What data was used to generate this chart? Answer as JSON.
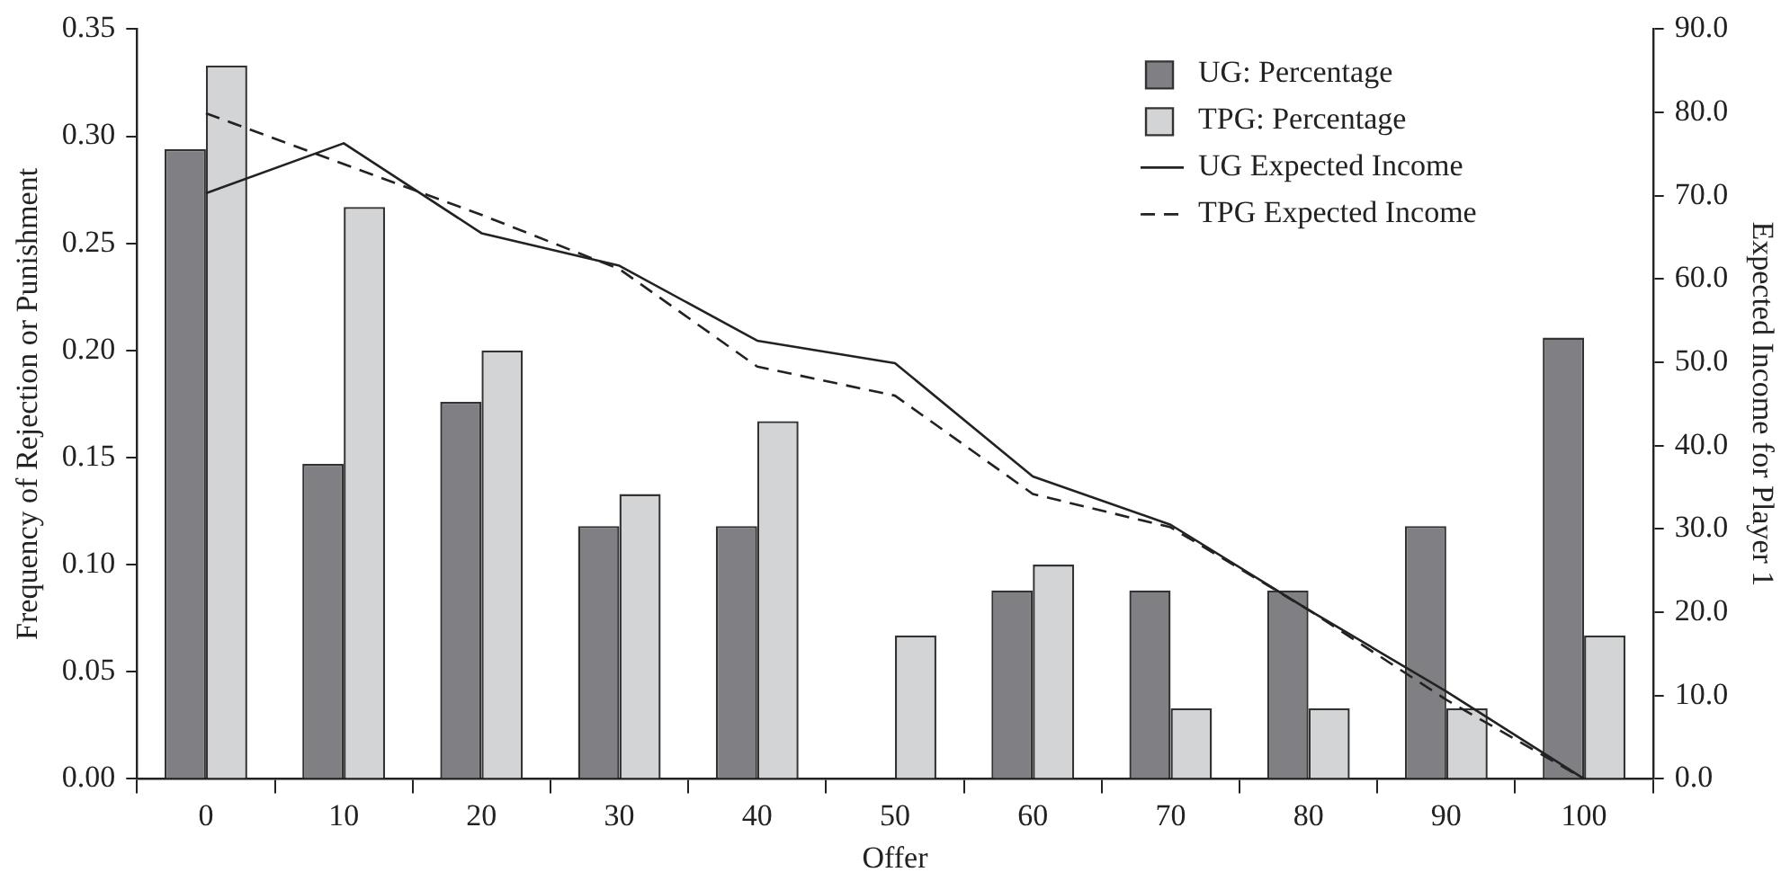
{
  "chart_data": {
    "type": "bar",
    "xlabel": "Offer",
    "ylabel": "Frequency of Rejection or Punishment",
    "y2label": "Expected Income for Player 1",
    "categories": [
      "0",
      "10",
      "20",
      "30",
      "40",
      "50",
      "60",
      "70",
      "80",
      "90",
      "100"
    ],
    "series": [
      {
        "name": "UG: Percentage",
        "color": "#808084",
        "values": [
          0.294,
          0.147,
          0.176,
          0.118,
          0.118,
          0,
          0.088,
          0.088,
          0.088,
          0.118,
          0.206
        ]
      },
      {
        "name": "TPG: Percentage",
        "color": "#d3d4d6",
        "values": [
          0.333,
          0.267,
          0.2,
          0.133,
          0.167,
          0.067,
          0.1,
          0.033,
          0.033,
          0.033,
          0.067
        ]
      },
      {
        "name": "UG Expected Income",
        "type": "line",
        "axis": "y2",
        "color": "#222222",
        "line_style": "solid",
        "values": [
          70.3,
          76.3,
          65.5,
          61.6,
          52.6,
          49.9,
          36.3,
          30.5,
          20.3,
          10.5,
          0
        ]
      },
      {
        "name": "TPG Expected Income",
        "type": "line",
        "axis": "y2",
        "color": "#222222",
        "line_style": "dashed",
        "values": [
          79.9,
          73.8,
          67.7,
          61.2,
          49.5,
          46.0,
          34.2,
          30.2,
          20.3,
          9.5,
          0
        ]
      }
    ],
    "ylim": [
      0,
      0.35
    ],
    "yticks": [
      {
        "value": 0,
        "label": "0.00"
      },
      {
        "value": 0.05,
        "label": "0.05"
      },
      {
        "value": 0.1,
        "label": "0.10"
      },
      {
        "value": 0.15,
        "label": "0.15"
      },
      {
        "value": 0.2,
        "label": "0.20"
      },
      {
        "value": 0.25,
        "label": "0.25"
      },
      {
        "value": 0.3,
        "label": "0.30"
      },
      {
        "value": 0.35,
        "label": "0.35"
      }
    ],
    "y2lim": [
      0,
      90
    ],
    "y2ticks": [
      {
        "value": 0,
        "label": "0.0"
      },
      {
        "value": 10,
        "label": "10.0"
      },
      {
        "value": 20,
        "label": "20.0"
      },
      {
        "value": 30,
        "label": "30.0"
      },
      {
        "value": 40,
        "label": "40.0"
      },
      {
        "value": 50,
        "label": "50.0"
      },
      {
        "value": 60,
        "label": "60.0"
      },
      {
        "value": 70,
        "label": "70.0"
      },
      {
        "value": 80,
        "label": "80.0"
      },
      {
        "value": 90,
        "label": "90.0"
      }
    ],
    "grid": false,
    "legend": "top right",
    "marker": "none"
  }
}
